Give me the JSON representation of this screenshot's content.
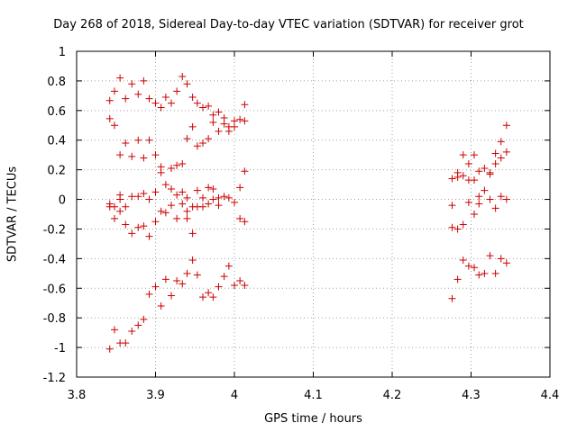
{
  "chart_data": {
    "type": "scatter",
    "title": "Day 268 of 2018, Sidereal Day-to-day VTEC variation (SDTVAR) for receiver grot",
    "xlabel": "GPS time / hours",
    "ylabel": "SDTVAR / TECUs",
    "xlim": [
      3.8,
      4.4
    ],
    "ylim": [
      -1.2,
      1.0
    ],
    "xticks": [
      3.8,
      3.9,
      4.0,
      4.1,
      4.2,
      4.3,
      4.4
    ],
    "xtick_labels": [
      "3.8",
      "3.9",
      "4",
      "4.1",
      "4.2",
      "4.3",
      "4.4"
    ],
    "yticks": [
      -1.2,
      -1.0,
      -0.8,
      -0.6,
      -0.4,
      -0.2,
      0.0,
      0.2,
      0.4,
      0.6,
      0.8,
      1.0
    ],
    "ytick_labels": [
      "-1.2",
      "-1",
      "-0.8",
      "-0.6",
      "-0.4",
      "-0.2",
      "0",
      "0.2",
      "0.4",
      "0.6",
      "0.8",
      "1"
    ],
    "grid": true,
    "marker": "+",
    "color": "#cc0000",
    "series": [
      {
        "name": "SDTVAR",
        "points": [
          [
            3.842,
            0.667
          ],
          [
            3.842,
            0.545
          ],
          [
            3.842,
            -0.03
          ],
          [
            3.842,
            -0.05
          ],
          [
            3.842,
            -1.01
          ],
          [
            3.848,
            0.73
          ],
          [
            3.848,
            0.5
          ],
          [
            3.848,
            -0.05
          ],
          [
            3.848,
            -0.13
          ],
          [
            3.848,
            -0.88
          ],
          [
            3.855,
            0.82
          ],
          [
            3.855,
            0.3
          ],
          [
            3.855,
            0.03
          ],
          [
            3.855,
            0.0
          ],
          [
            3.855,
            -0.08
          ],
          [
            3.855,
            -0.97
          ],
          [
            3.862,
            0.68
          ],
          [
            3.862,
            0.38
          ],
          [
            3.862,
            -0.05
          ],
          [
            3.862,
            -0.17
          ],
          [
            3.862,
            -0.97
          ],
          [
            3.87,
            0.78
          ],
          [
            3.87,
            0.29
          ],
          [
            3.87,
            0.02
          ],
          [
            3.87,
            -0.23
          ],
          [
            3.87,
            -0.89
          ],
          [
            3.878,
            0.71
          ],
          [
            3.878,
            0.4
          ],
          [
            3.878,
            0.02
          ],
          [
            3.878,
            -0.19
          ],
          [
            3.878,
            -0.85
          ],
          [
            3.885,
            0.8
          ],
          [
            3.885,
            0.28
          ],
          [
            3.885,
            0.04
          ],
          [
            3.885,
            -0.18
          ],
          [
            3.885,
            -0.81
          ],
          [
            3.892,
            0.68
          ],
          [
            3.892,
            0.4
          ],
          [
            3.892,
            0.0
          ],
          [
            3.892,
            -0.25
          ],
          [
            3.892,
            -0.64
          ],
          [
            3.9,
            0.65
          ],
          [
            3.9,
            0.3
          ],
          [
            3.9,
            0.05
          ],
          [
            3.9,
            -0.15
          ],
          [
            3.9,
            -0.59
          ],
          [
            3.907,
            0.62
          ],
          [
            3.907,
            0.22
          ],
          [
            3.907,
            0.18
          ],
          [
            3.907,
            -0.08
          ],
          [
            3.907,
            -0.72
          ],
          [
            3.913,
            0.69
          ],
          [
            3.913,
            0.1
          ],
          [
            3.913,
            -0.09
          ],
          [
            3.913,
            -0.54
          ],
          [
            3.92,
            0.65
          ],
          [
            3.92,
            0.21
          ],
          [
            3.92,
            0.07
          ],
          [
            3.92,
            -0.04
          ],
          [
            3.92,
            -0.65
          ],
          [
            3.927,
            0.73
          ],
          [
            3.927,
            0.23
          ],
          [
            3.927,
            0.03
          ],
          [
            3.927,
            -0.13
          ],
          [
            3.927,
            -0.55
          ],
          [
            3.934,
            0.83
          ],
          [
            3.934,
            0.24
          ],
          [
            3.934,
            0.05
          ],
          [
            3.934,
            -0.03
          ],
          [
            3.934,
            -0.57
          ],
          [
            3.94,
            0.78
          ],
          [
            3.94,
            0.41
          ],
          [
            3.94,
            0.01
          ],
          [
            3.94,
            -0.08
          ],
          [
            3.94,
            -0.13
          ],
          [
            3.94,
            -0.5
          ],
          [
            3.947,
            0.69
          ],
          [
            3.947,
            0.49
          ],
          [
            3.947,
            -0.05
          ],
          [
            3.947,
            -0.23
          ],
          [
            3.947,
            -0.41
          ],
          [
            3.953,
            0.65
          ],
          [
            3.953,
            0.36
          ],
          [
            3.953,
            0.06
          ],
          [
            3.953,
            -0.05
          ],
          [
            3.953,
            -0.51
          ],
          [
            3.96,
            0.62
          ],
          [
            3.96,
            0.38
          ],
          [
            3.96,
            0.01
          ],
          [
            3.96,
            -0.05
          ],
          [
            3.96,
            -0.66
          ],
          [
            3.967,
            0.63
          ],
          [
            3.967,
            0.41
          ],
          [
            3.967,
            0.08
          ],
          [
            3.967,
            -0.03
          ],
          [
            3.967,
            -0.63
          ],
          [
            3.973,
            0.57
          ],
          [
            3.973,
            0.52
          ],
          [
            3.973,
            0.07
          ],
          [
            3.973,
            0.0
          ],
          [
            3.973,
            -0.66
          ],
          [
            3.98,
            0.59
          ],
          [
            3.98,
            0.46
          ],
          [
            3.98,
            0.01
          ],
          [
            3.98,
            -0.04
          ],
          [
            3.98,
            -0.59
          ],
          [
            3.987,
            0.55
          ],
          [
            3.987,
            0.51
          ],
          [
            3.987,
            0.02
          ],
          [
            3.987,
            -0.52
          ],
          [
            3.993,
            0.46
          ],
          [
            3.993,
            0.49
          ],
          [
            3.993,
            0.01
          ],
          [
            3.993,
            -0.45
          ],
          [
            4.0,
            0.53
          ],
          [
            4.0,
            0.49
          ],
          [
            4.0,
            -0.02
          ],
          [
            4.0,
            -0.58
          ],
          [
            4.007,
            0.54
          ],
          [
            4.007,
            0.08
          ],
          [
            4.007,
            -0.13
          ],
          [
            4.007,
            -0.55
          ],
          [
            4.013,
            0.64
          ],
          [
            4.013,
            0.53
          ],
          [
            4.013,
            0.19
          ],
          [
            4.013,
            -0.15
          ],
          [
            4.013,
            -0.58
          ],
          [
            4.276,
            0.14
          ],
          [
            4.276,
            -0.04
          ],
          [
            4.276,
            -0.19
          ],
          [
            4.276,
            -0.67
          ],
          [
            4.283,
            0.15
          ],
          [
            4.283,
            0.18
          ],
          [
            4.283,
            -0.2
          ],
          [
            4.283,
            -0.54
          ],
          [
            4.29,
            0.3
          ],
          [
            4.29,
            0.16
          ],
          [
            4.29,
            -0.17
          ],
          [
            4.29,
            -0.41
          ],
          [
            4.297,
            0.24
          ],
          [
            4.297,
            0.13
          ],
          [
            4.297,
            -0.02
          ],
          [
            4.297,
            -0.45
          ],
          [
            4.304,
            0.3
          ],
          [
            4.304,
            0.13
          ],
          [
            4.304,
            -0.1
          ],
          [
            4.304,
            -0.46
          ],
          [
            4.31,
            0.19
          ],
          [
            4.31,
            0.02
          ],
          [
            4.31,
            -0.03
          ],
          [
            4.31,
            -0.51
          ],
          [
            4.317,
            0.21
          ],
          [
            4.317,
            0.06
          ],
          [
            4.317,
            -0.5
          ],
          [
            4.324,
            0.17
          ],
          [
            4.324,
            0.18
          ],
          [
            4.324,
            0.0
          ],
          [
            4.324,
            -0.38
          ],
          [
            4.331,
            0.31
          ],
          [
            4.331,
            0.24
          ],
          [
            4.331,
            -0.06
          ],
          [
            4.331,
            -0.5
          ],
          [
            4.338,
            0.39
          ],
          [
            4.338,
            0.28
          ],
          [
            4.338,
            0.02
          ],
          [
            4.338,
            -0.4
          ],
          [
            4.345,
            0.5
          ],
          [
            4.345,
            0.32
          ],
          [
            4.345,
            0.0
          ],
          [
            4.345,
            -0.43
          ]
        ]
      }
    ]
  }
}
